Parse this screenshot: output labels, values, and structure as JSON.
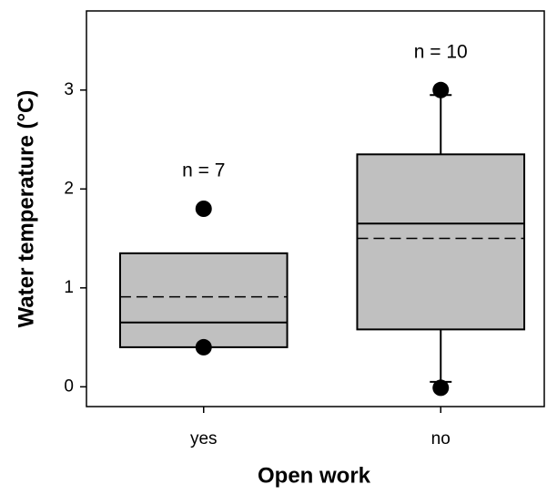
{
  "chart_data": {
    "type": "box",
    "x_label": "Open work",
    "y_label": "Water temperature (°C)",
    "categories": [
      "yes",
      "no"
    ],
    "annotations": [
      "n = 7",
      "n = 10"
    ],
    "boxes": [
      {
        "q1": 0.4,
        "median": 0.65,
        "q3": 1.35,
        "mean": 0.91,
        "outliers": [
          1.8,
          0.4
        ]
      },
      {
        "q1": 0.58,
        "median": 1.65,
        "q3": 2.35,
        "mean": 1.5,
        "whisker_low": 0.05,
        "whisker_high": 2.95,
        "outliers": [
          3.0,
          -0.01
        ]
      }
    ],
    "box_color": "#c0c0c0",
    "ylim": [
      -0.2,
      3.8
    ],
    "yticks": [
      0,
      1,
      2,
      3
    ]
  }
}
